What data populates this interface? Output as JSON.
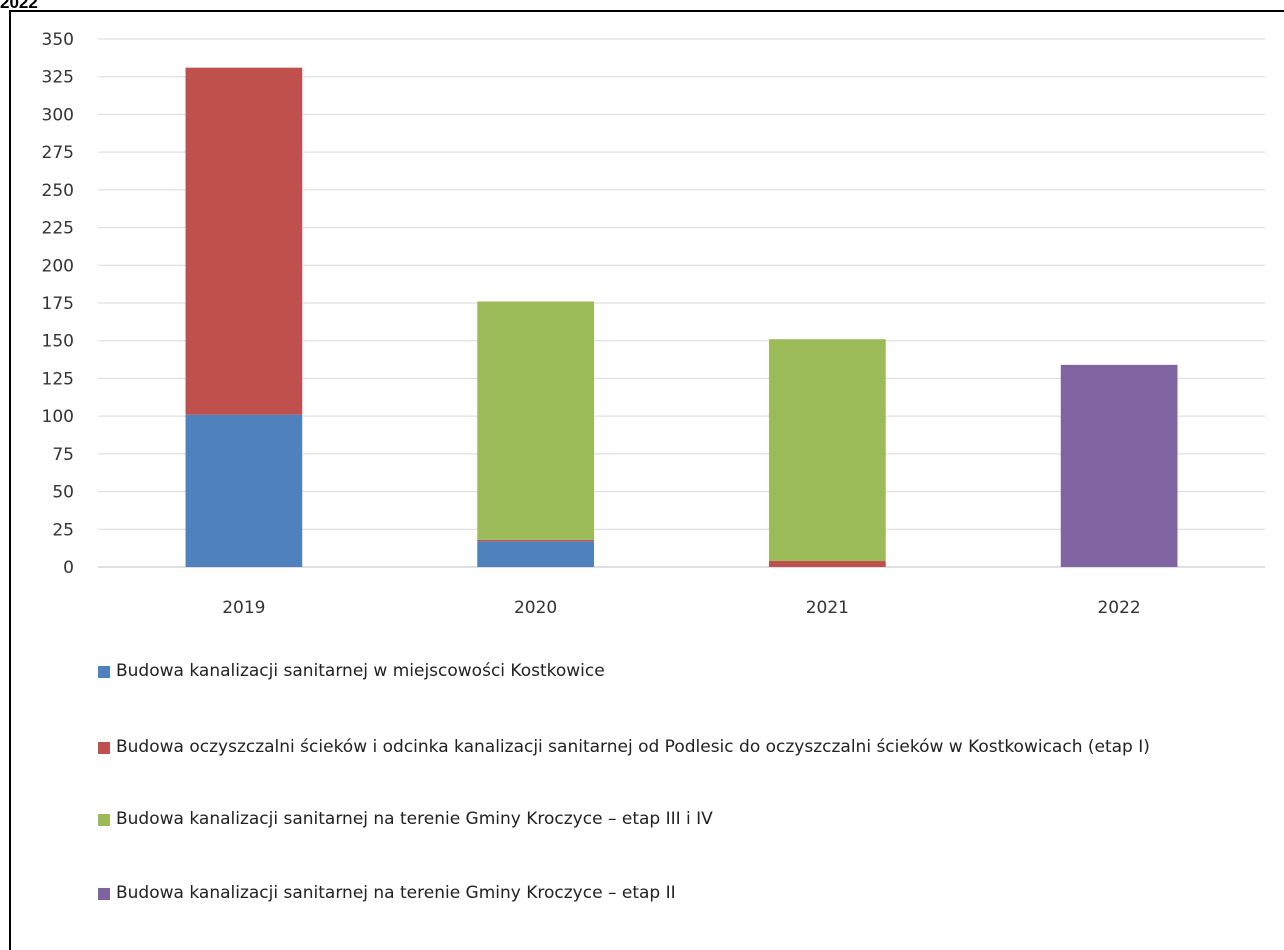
{
  "caption": "2022",
  "chart_data": {
    "type": "bar",
    "stacked": true,
    "categories": [
      "2019",
      "2020",
      "2021",
      "2022"
    ],
    "ylim": [
      0,
      350
    ],
    "yticks": [
      0,
      25,
      50,
      75,
      100,
      125,
      150,
      175,
      200,
      225,
      250,
      275,
      300,
      325,
      350
    ],
    "grid": true,
    "legend_position": "bottom",
    "series": [
      {
        "name": "Budowa kanalizacji sanitarnej w miejscowości Kostkowice",
        "color": "#4f81bd",
        "values": [
          101,
          17,
          0,
          0
        ]
      },
      {
        "name": "Budowa oczyszczalni ścieków i odcinka kanalizacji sanitarnej od Podlesic do oczyszczalni ścieków w Kostkowicach (etap I)",
        "color": "#c0504d",
        "values": [
          230,
          1,
          4,
          0
        ]
      },
      {
        "name": "Budowa kanalizacji sanitarnej na terenie Gminy Kroczyce – etap III i IV",
        "color": "#9bbb59",
        "values": [
          0,
          158,
          147,
          0
        ]
      },
      {
        "name": "Budowa kanalizacji sanitarnej na terenie Gminy Kroczyce – etap II",
        "color": "#8064a2",
        "values": [
          0,
          0,
          0,
          134
        ]
      }
    ]
  }
}
